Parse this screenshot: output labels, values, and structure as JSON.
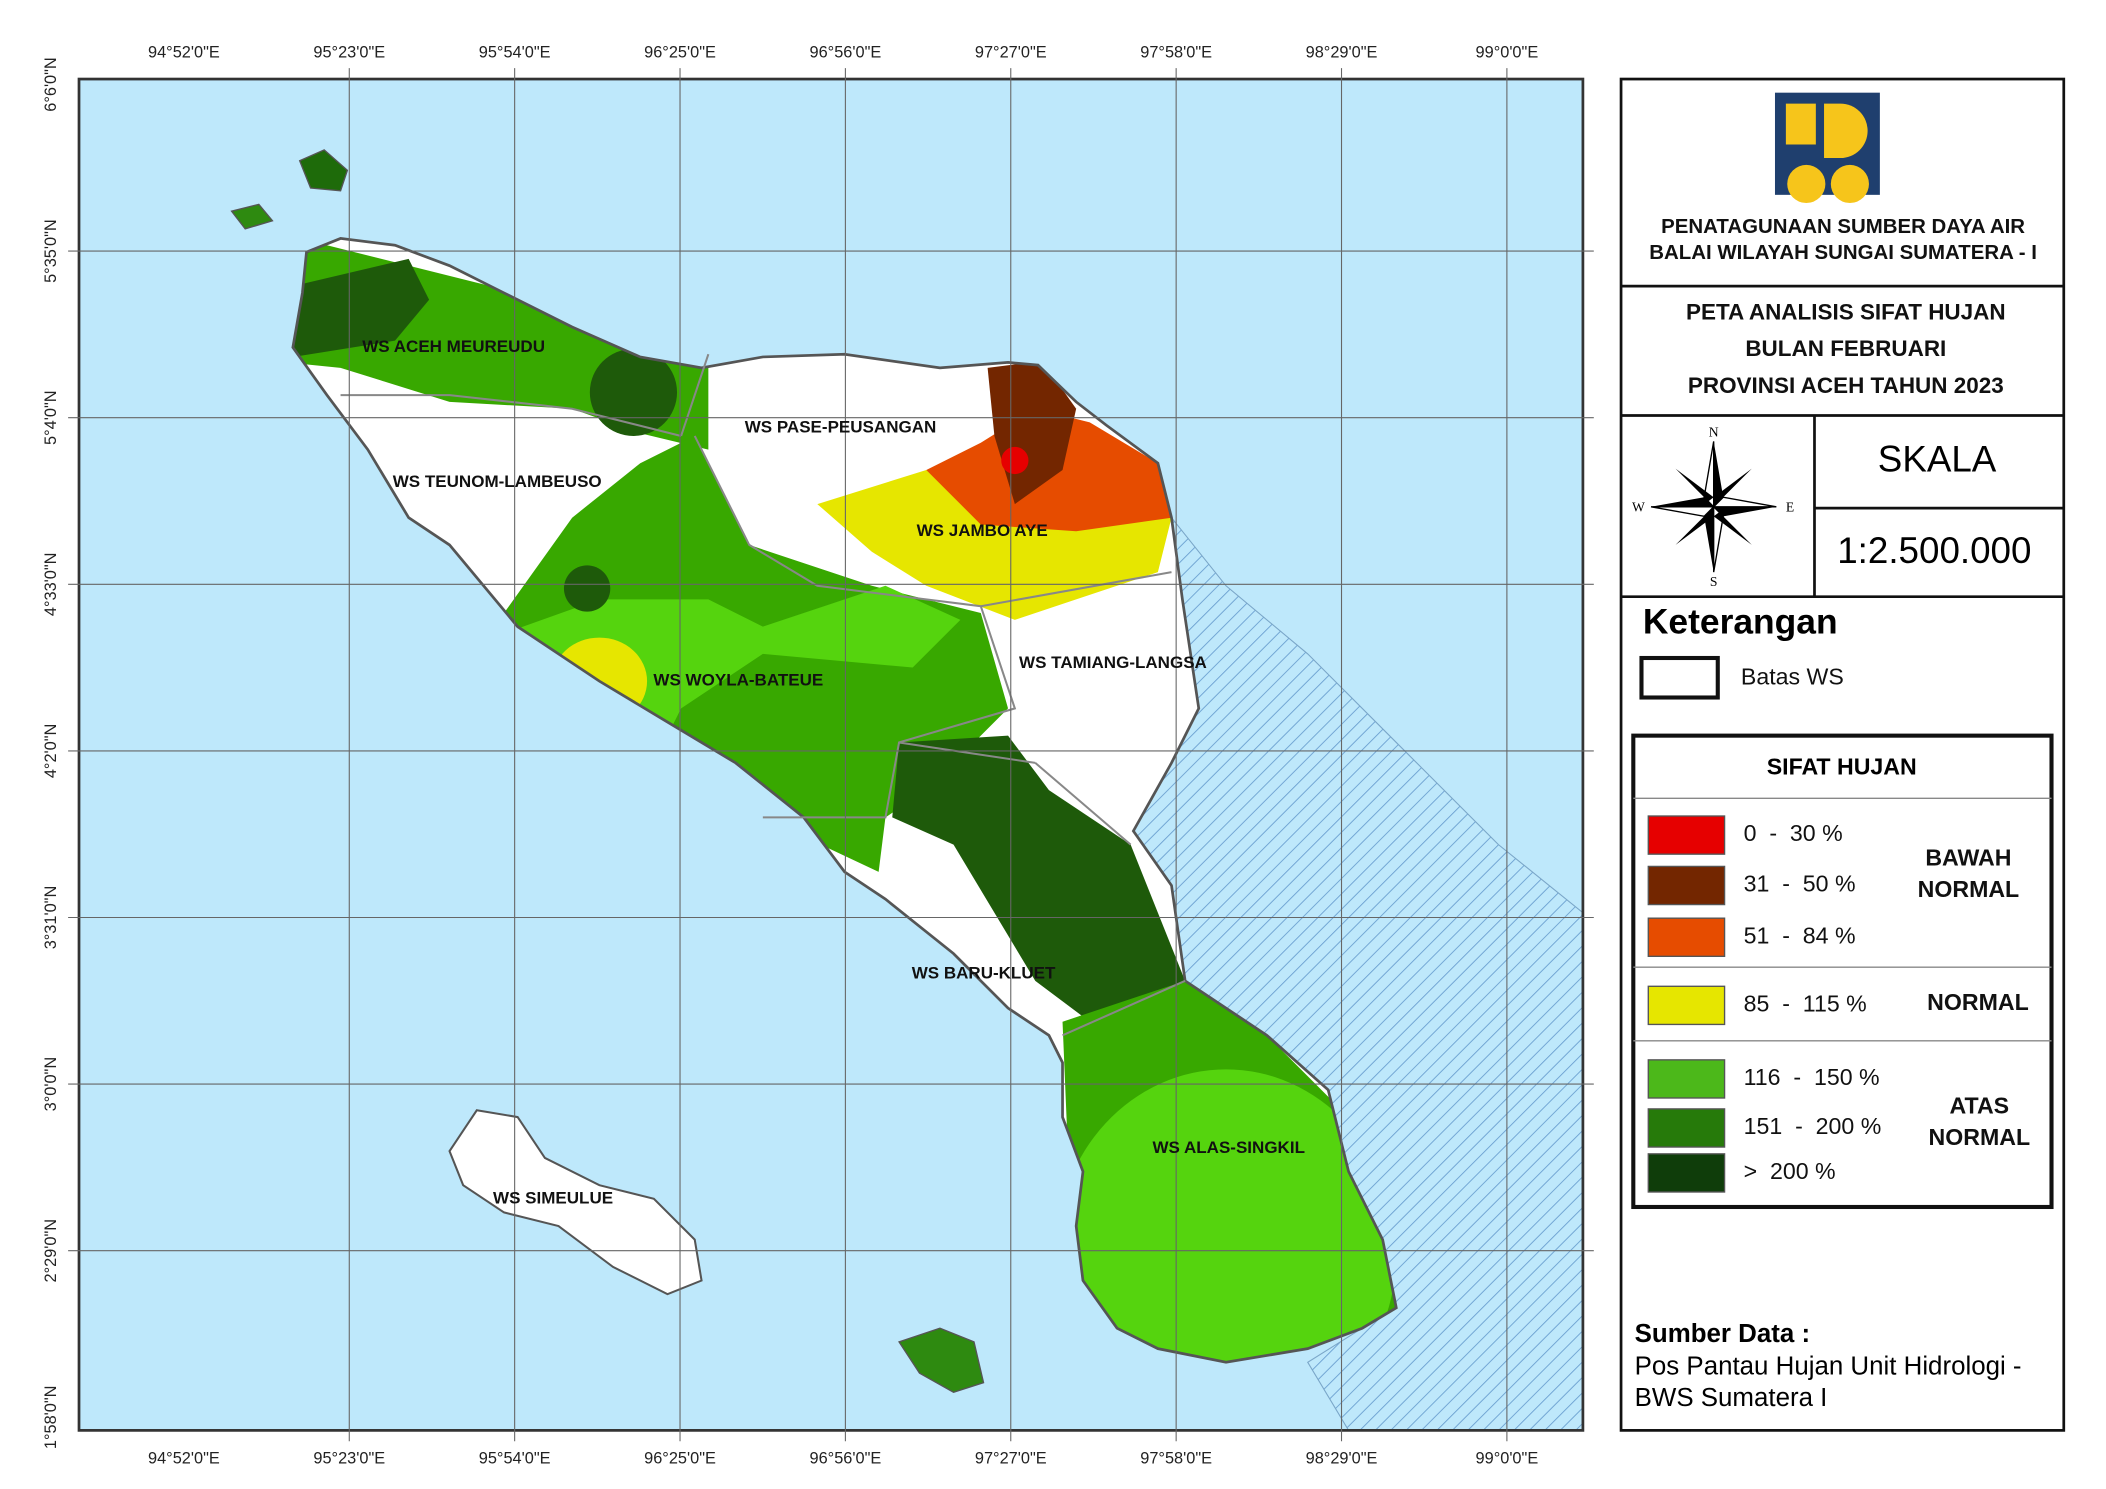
{
  "map": {
    "lon_labels": [
      "94°52'0\"E",
      "95°23'0\"E",
      "95°54'0\"E",
      "96°25'0\"E",
      "96°56'0\"E",
      "97°27'0\"E",
      "97°58'0\"E",
      "98°29'0\"E",
      "99°0'0\"E"
    ],
    "lat_labels": [
      "6°6'0\"N",
      "5°35'0\"N",
      "5°4'0\"N",
      "4°33'0\"N",
      "4°2'0\"N",
      "3°31'0\"N",
      "3°0'0\"N",
      "2°29'0\"N",
      "1°58'0\"N"
    ],
    "regions": [
      "WS ACEH MEUREUDU",
      "WS PASE-PEUSANGAN",
      "WS TEUNOM-LAMBEUSO",
      "WS JAMBO AYE",
      "WS TAMIANG-LANGSA",
      "WS WOYLA-BATEUE",
      "WS BARU-KLUET",
      "WS ALAS-SINGKIL",
      "WS SIMEULUE"
    ],
    "compass": {
      "n": "N",
      "s": "S",
      "e": "E",
      "w": "W"
    }
  },
  "panel": {
    "org": [
      "PENATAGUNAAN SUMBER DAYA AIR",
      "BALAI WILAYAH SUNGAI SUMATERA - I"
    ],
    "title": [
      "PETA ANALISIS SIFAT HUJAN",
      "BULAN FEBRUARI",
      "PROVINSI ACEH TAHUN 2023"
    ],
    "scale_title": "SKALA",
    "scale": "1:2.500.000",
    "legend_title": "Keterangan",
    "boundary_label": "Batas WS",
    "rain_title": "SIFAT HUJAN",
    "classes": [
      {
        "label": "0  -  30 %",
        "color": "#e60000"
      },
      {
        "label": "31  -  50 %",
        "color": "#732600"
      },
      {
        "label": "51  -  84 %",
        "color": "#e64c00"
      },
      {
        "label": "85  -  115 %",
        "color": "#e6e600"
      },
      {
        "label": "116  -  150 %",
        "color": "#4cb81a"
      },
      {
        "label": "151  -  200 %",
        "color": "#267a0a"
      },
      {
        "label": ">  200 %",
        "color": "#0f3d0a"
      }
    ],
    "groups": [
      [
        "BAWAH",
        "NORMAL"
      ],
      [
        "NORMAL"
      ],
      [
        "ATAS",
        "NORMAL"
      ]
    ],
    "source_title": "Sumber Data :",
    "source": [
      "Pos Pantau Hujan Unit Hidrologi -",
      "BWS Sumatera I"
    ]
  }
}
